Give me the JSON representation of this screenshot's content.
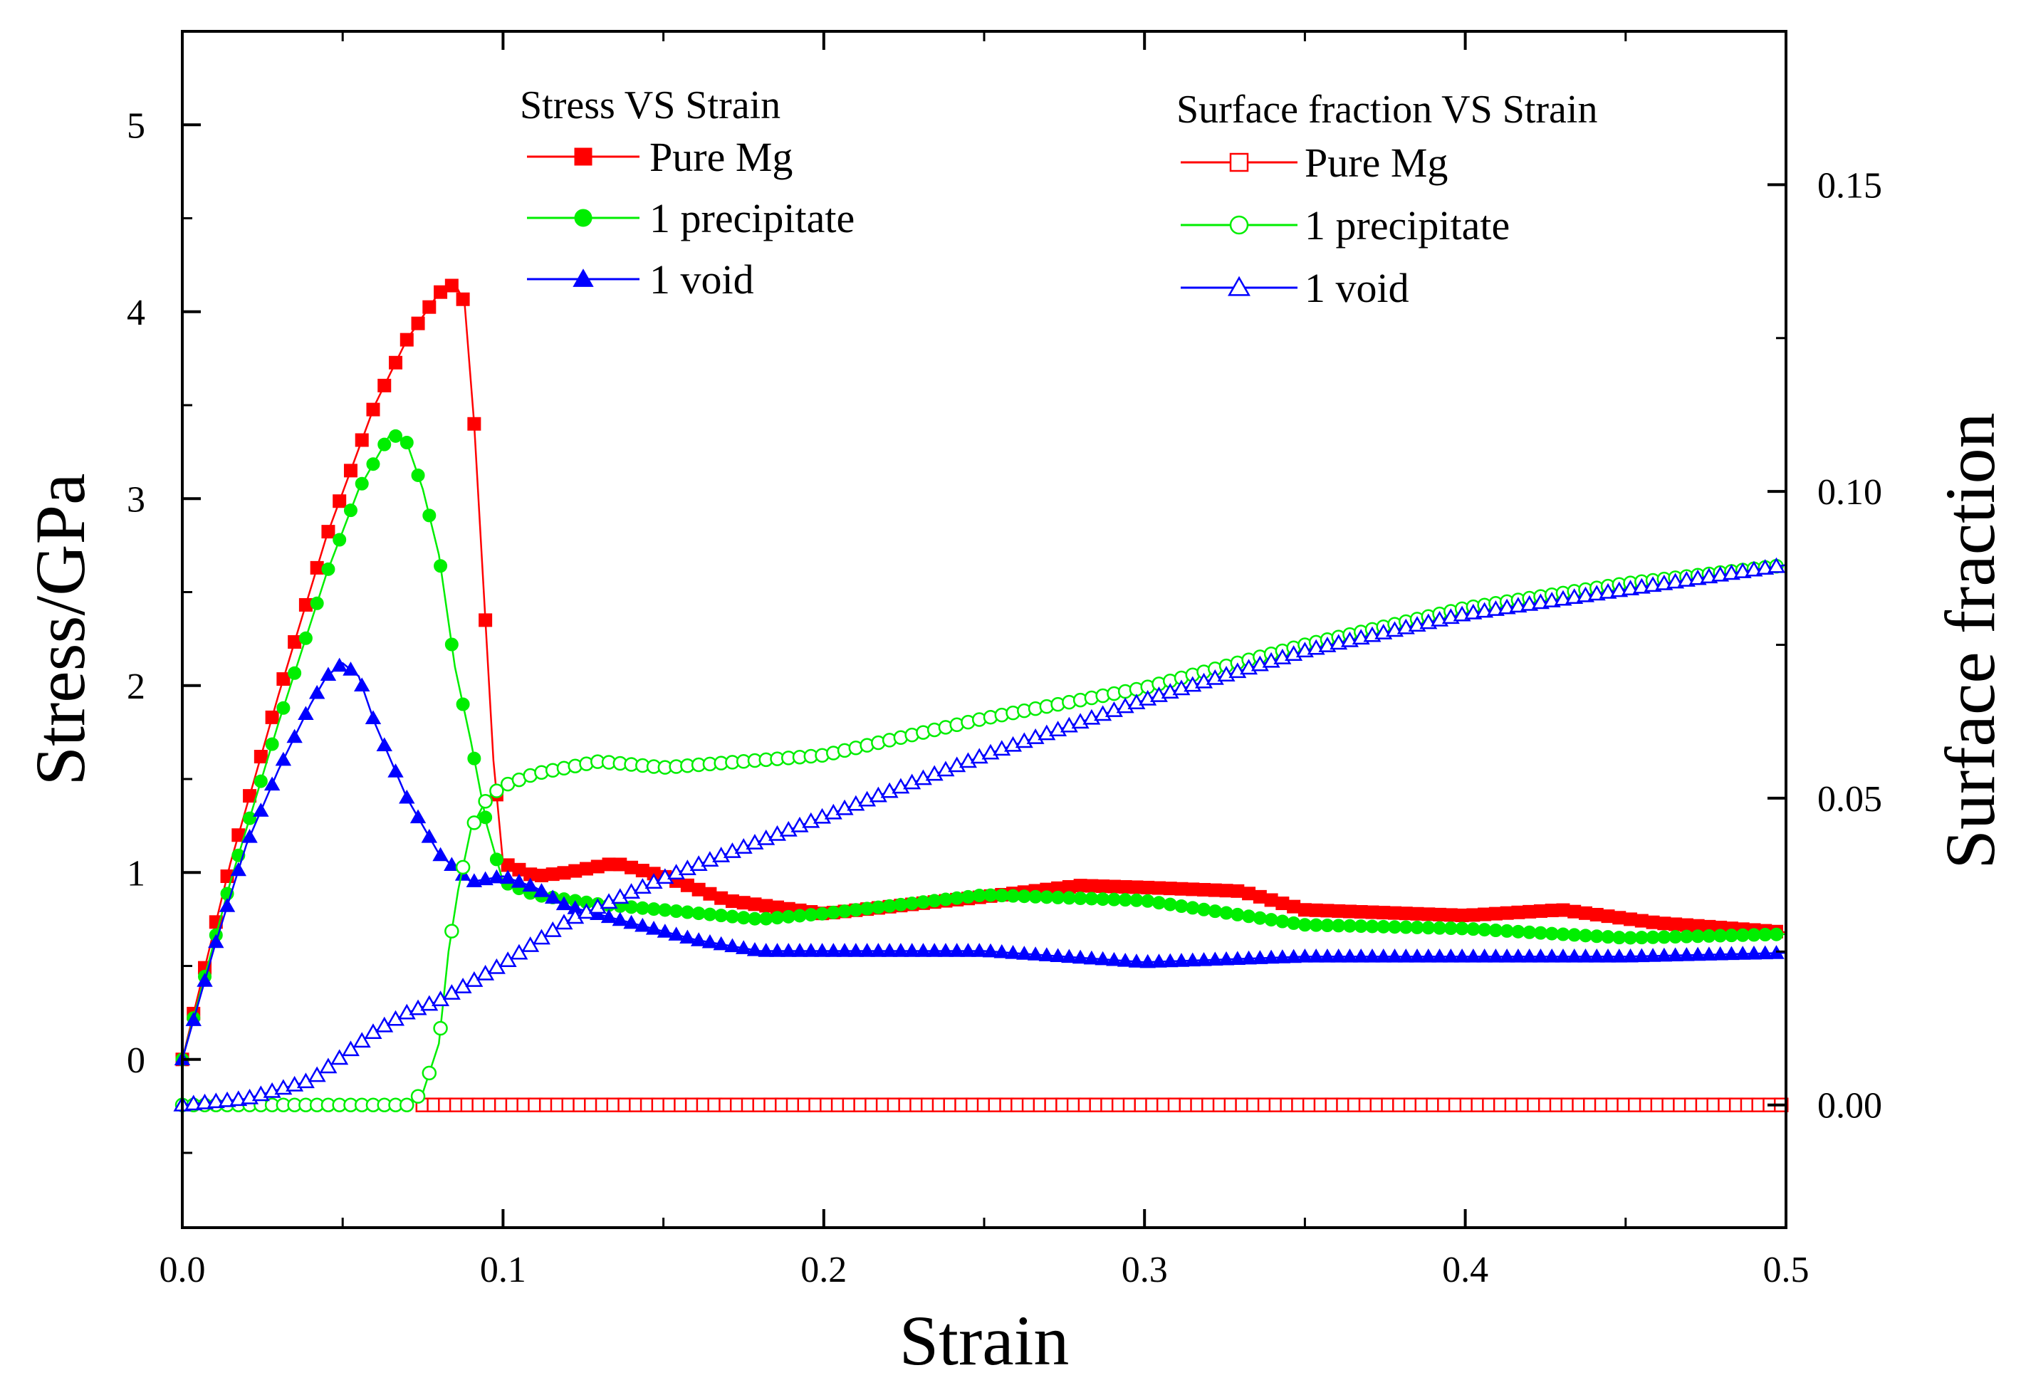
{
  "chart_data": {
    "type": "scatter",
    "title": "",
    "xlabel": "Strain",
    "ylabel": "Stress/GPa",
    "y2label": "Surface fraction",
    "xlim": [
      0,
      0.5
    ],
    "ylim": [
      -0.9,
      5.5
    ],
    "y2lim": [
      -0.02,
      0.175
    ],
    "x_ticks": [
      "0.0",
      "0.1",
      "0.2",
      "0.3",
      "0.4",
      "0.5"
    ],
    "y_ticks": [
      "0",
      "1",
      "2",
      "3",
      "4",
      "5"
    ],
    "y2_ticks": [
      "0.00",
      "0.05",
      "0.10",
      "0.15"
    ],
    "legend_groups": [
      {
        "title": "Stress VS Strain",
        "entries": [
          "Pure Mg",
          "1 precipitate",
          "1 void"
        ]
      },
      {
        "title": "Surface fraction VS Strain",
        "entries": [
          "Pure Mg",
          "1 precipitate",
          "1 void"
        ]
      }
    ],
    "series": [
      {
        "name": "Pure Mg",
        "axis": "left",
        "marker": "square",
        "filled": true,
        "color": "#ff0000",
        "x": [
          0,
          0.015,
          0.03,
          0.045,
          0.06,
          0.07,
          0.08,
          0.085,
          0.088,
          0.091,
          0.094,
          0.097,
          0.1,
          0.11,
          0.12,
          0.135,
          0.15,
          0.17,
          0.2,
          0.25,
          0.28,
          0.3,
          0.33,
          0.35,
          0.4,
          0.43,
          0.46,
          0.5
        ],
        "y": [
          0,
          1.05,
          1.95,
          2.8,
          3.5,
          3.85,
          4.1,
          4.15,
          4.05,
          3.4,
          2.5,
          1.6,
          1.05,
          0.98,
          1.0,
          1.05,
          0.98,
          0.85,
          0.78,
          0.87,
          0.93,
          0.92,
          0.9,
          0.8,
          0.77,
          0.8,
          0.73,
          0.68
        ]
      },
      {
        "name": "1 precipitate",
        "axis": "left",
        "marker": "circle",
        "filled": true,
        "color": "#00ee00",
        "x": [
          0,
          0.015,
          0.03,
          0.045,
          0.055,
          0.065,
          0.07,
          0.075,
          0.08,
          0.085,
          0.09,
          0.095,
          0.1,
          0.11,
          0.13,
          0.15,
          0.18,
          0.2,
          0.25,
          0.3,
          0.35,
          0.4,
          0.45,
          0.5
        ],
        "y": [
          0,
          0.95,
          1.8,
          2.6,
          3.05,
          3.35,
          3.3,
          3.05,
          2.7,
          2.1,
          1.7,
          1.25,
          0.95,
          0.88,
          0.83,
          0.8,
          0.75,
          0.78,
          0.88,
          0.85,
          0.72,
          0.7,
          0.65,
          0.67
        ]
      },
      {
        "name": "1 void",
        "axis": "left",
        "marker": "triangle",
        "filled": true,
        "color": "#0000ff",
        "x": [
          0,
          0.01,
          0.02,
          0.03,
          0.04,
          0.045,
          0.05,
          0.055,
          0.06,
          0.07,
          0.08,
          0.09,
          0.1,
          0.11,
          0.12,
          0.14,
          0.16,
          0.18,
          0.2,
          0.25,
          0.3,
          0.35,
          0.4,
          0.45,
          0.5
        ],
        "y": [
          0,
          0.6,
          1.15,
          1.55,
          1.9,
          2.05,
          2.12,
          2.05,
          1.8,
          1.4,
          1.1,
          0.95,
          0.98,
          0.92,
          0.82,
          0.73,
          0.64,
          0.58,
          0.58,
          0.58,
          0.52,
          0.55,
          0.55,
          0.55,
          0.57
        ]
      },
      {
        "name": "Pure Mg",
        "axis": "right",
        "marker": "square",
        "filled": false,
        "color": "#ff0000",
        "x": [
          0.075,
          0.5
        ],
        "y": [
          0,
          0
        ]
      },
      {
        "name": "1 precipitate",
        "axis": "right",
        "marker": "circle",
        "filled": false,
        "color": "#00ee00",
        "x": [
          0,
          0.04,
          0.07,
          0.075,
          0.08,
          0.083,
          0.086,
          0.09,
          0.095,
          0.1,
          0.11,
          0.13,
          0.15,
          0.2,
          0.25,
          0.3,
          0.35,
          0.4,
          0.45,
          0.5
        ],
        "y": [
          0,
          0,
          0,
          0.002,
          0.01,
          0.025,
          0.035,
          0.045,
          0.05,
          0.052,
          0.054,
          0.056,
          0.055,
          0.057,
          0.063,
          0.068,
          0.075,
          0.081,
          0.085,
          0.088
        ]
      },
      {
        "name": "1 void",
        "axis": "right",
        "marker": "triangle",
        "filled": false,
        "color": "#0000ff",
        "x": [
          0,
          0.02,
          0.04,
          0.06,
          0.07,
          0.08,
          0.09,
          0.1,
          0.12,
          0.15,
          0.2,
          0.25,
          0.3,
          0.35,
          0.4,
          0.45,
          0.5
        ],
        "y": [
          0,
          0.001,
          0.004,
          0.012,
          0.015,
          0.017,
          0.02,
          0.023,
          0.03,
          0.037,
          0.047,
          0.057,
          0.066,
          0.074,
          0.08,
          0.084,
          0.088
        ]
      }
    ]
  }
}
